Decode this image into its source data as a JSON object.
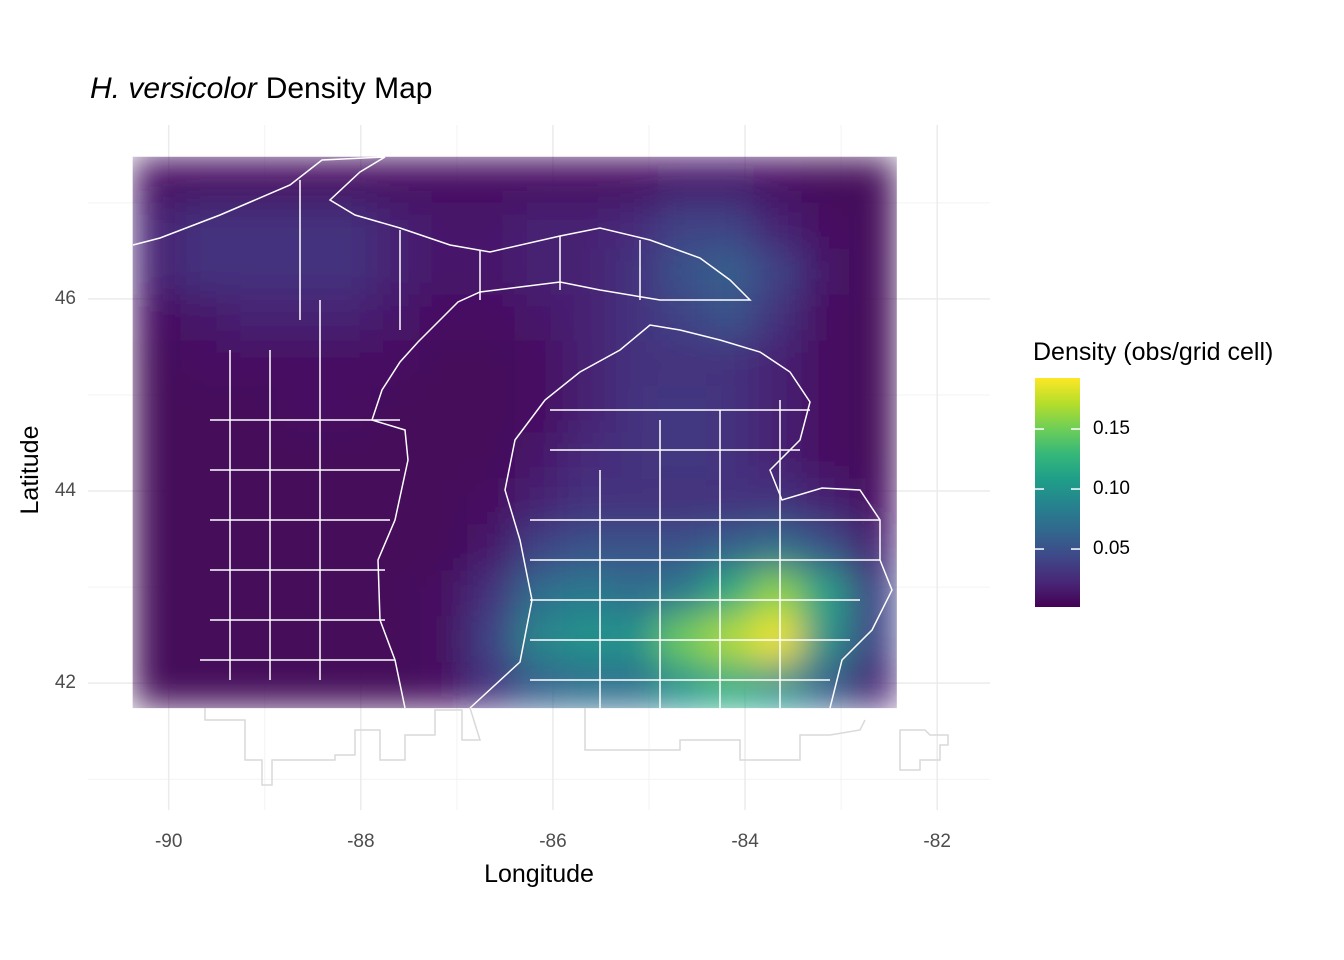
{
  "chart_data": {
    "type": "heatmap",
    "title": [
      "H. versicolor",
      "Density Map"
    ],
    "x_label": "Longitude",
    "y_label": "Latitude",
    "xlim": [
      -90.84,
      -81.45
    ],
    "ylim": [
      40.68,
      47.81
    ],
    "xticks": [
      -90,
      -88,
      -86,
      -84,
      -82
    ],
    "yticks": [
      42,
      44,
      46
    ],
    "minor_xticks": [
      -89,
      -87,
      -85,
      -83
    ],
    "minor_yticks": [
      41,
      43,
      45,
      47
    ],
    "grid": true,
    "raster_xlim": [
      -90.375,
      -82.42
    ],
    "raster_ylim": [
      41.74,
      47.48
    ],
    "values": [
      [
        0.01,
        0.01,
        0.01,
        0.01,
        0.01,
        0.01,
        0.01,
        0.01,
        0.01,
        0.01,
        0.01,
        0.015,
        0.015,
        0.01,
        0.005,
        0.005
      ],
      [
        0.02,
        0.03,
        0.03,
        0.03,
        0.03,
        0.02,
        0.015,
        0.015,
        0.02,
        0.02,
        0.025,
        0.04,
        0.04,
        0.02,
        0.01,
        0.005
      ],
      [
        0.02,
        0.03,
        0.03,
        0.03,
        0.03,
        0.02,
        0.015,
        0.015,
        0.02,
        0.02,
        0.03,
        0.05,
        0.06,
        0.04,
        0.015,
        0.005
      ],
      [
        0.01,
        0.015,
        0.02,
        0.02,
        0.02,
        0.015,
        0.01,
        0.01,
        0.015,
        0.02,
        0.03,
        0.04,
        0.05,
        0.03,
        0.01,
        0.005
      ],
      [
        0.005,
        0.01,
        0.01,
        0.01,
        0.01,
        0.01,
        0.005,
        0.005,
        0.01,
        0.02,
        0.03,
        0.03,
        0.03,
        0.02,
        0.01,
        0.005
      ],
      [
        0.005,
        0.005,
        0.005,
        0.01,
        0.01,
        0.005,
        0.005,
        0.005,
        0.01,
        0.02,
        0.03,
        0.035,
        0.03,
        0.02,
        0.01,
        0.005
      ],
      [
        0.005,
        0.005,
        0.005,
        0.005,
        0.005,
        0.005,
        0.005,
        0.005,
        0.015,
        0.025,
        0.03,
        0.035,
        0.03,
        0.02,
        0.01,
        0.005
      ],
      [
        0.005,
        0.005,
        0.005,
        0.005,
        0.005,
        0.005,
        0.005,
        0.01,
        0.02,
        0.03,
        0.03,
        0.03,
        0.03,
        0.03,
        0.02,
        0.01
      ],
      [
        0.005,
        0.005,
        0.005,
        0.005,
        0.005,
        0.005,
        0.005,
        0.015,
        0.04,
        0.05,
        0.05,
        0.05,
        0.06,
        0.07,
        0.05,
        0.02
      ],
      [
        0.005,
        0.005,
        0.005,
        0.005,
        0.005,
        0.005,
        0.01,
        0.03,
        0.07,
        0.08,
        0.07,
        0.08,
        0.12,
        0.16,
        0.11,
        0.04
      ],
      [
        0.005,
        0.005,
        0.005,
        0.005,
        0.005,
        0.005,
        0.01,
        0.04,
        0.09,
        0.1,
        0.1,
        0.15,
        0.17,
        0.19,
        0.1,
        0.04
      ],
      [
        0.005,
        0.005,
        0.005,
        0.005,
        0.005,
        0.005,
        0.01,
        0.03,
        0.06,
        0.07,
        0.07,
        0.1,
        0.12,
        0.1,
        0.06,
        0.02
      ]
    ],
    "legend": {
      "title": "Density (obs/grid cell)",
      "limits": [
        0.0017,
        0.1925
      ],
      "ticks": [
        0.05,
        {
          "value": 0.1,
          "label": "0.10"
        },
        0.15
      ],
      "colors": [
        "#440154",
        "#482878",
        "#3e4989",
        "#31688e",
        "#26828e",
        "#1f9e89",
        "#35b779",
        "#6ece58",
        "#b5de2b",
        "#fde725"
      ]
    }
  }
}
